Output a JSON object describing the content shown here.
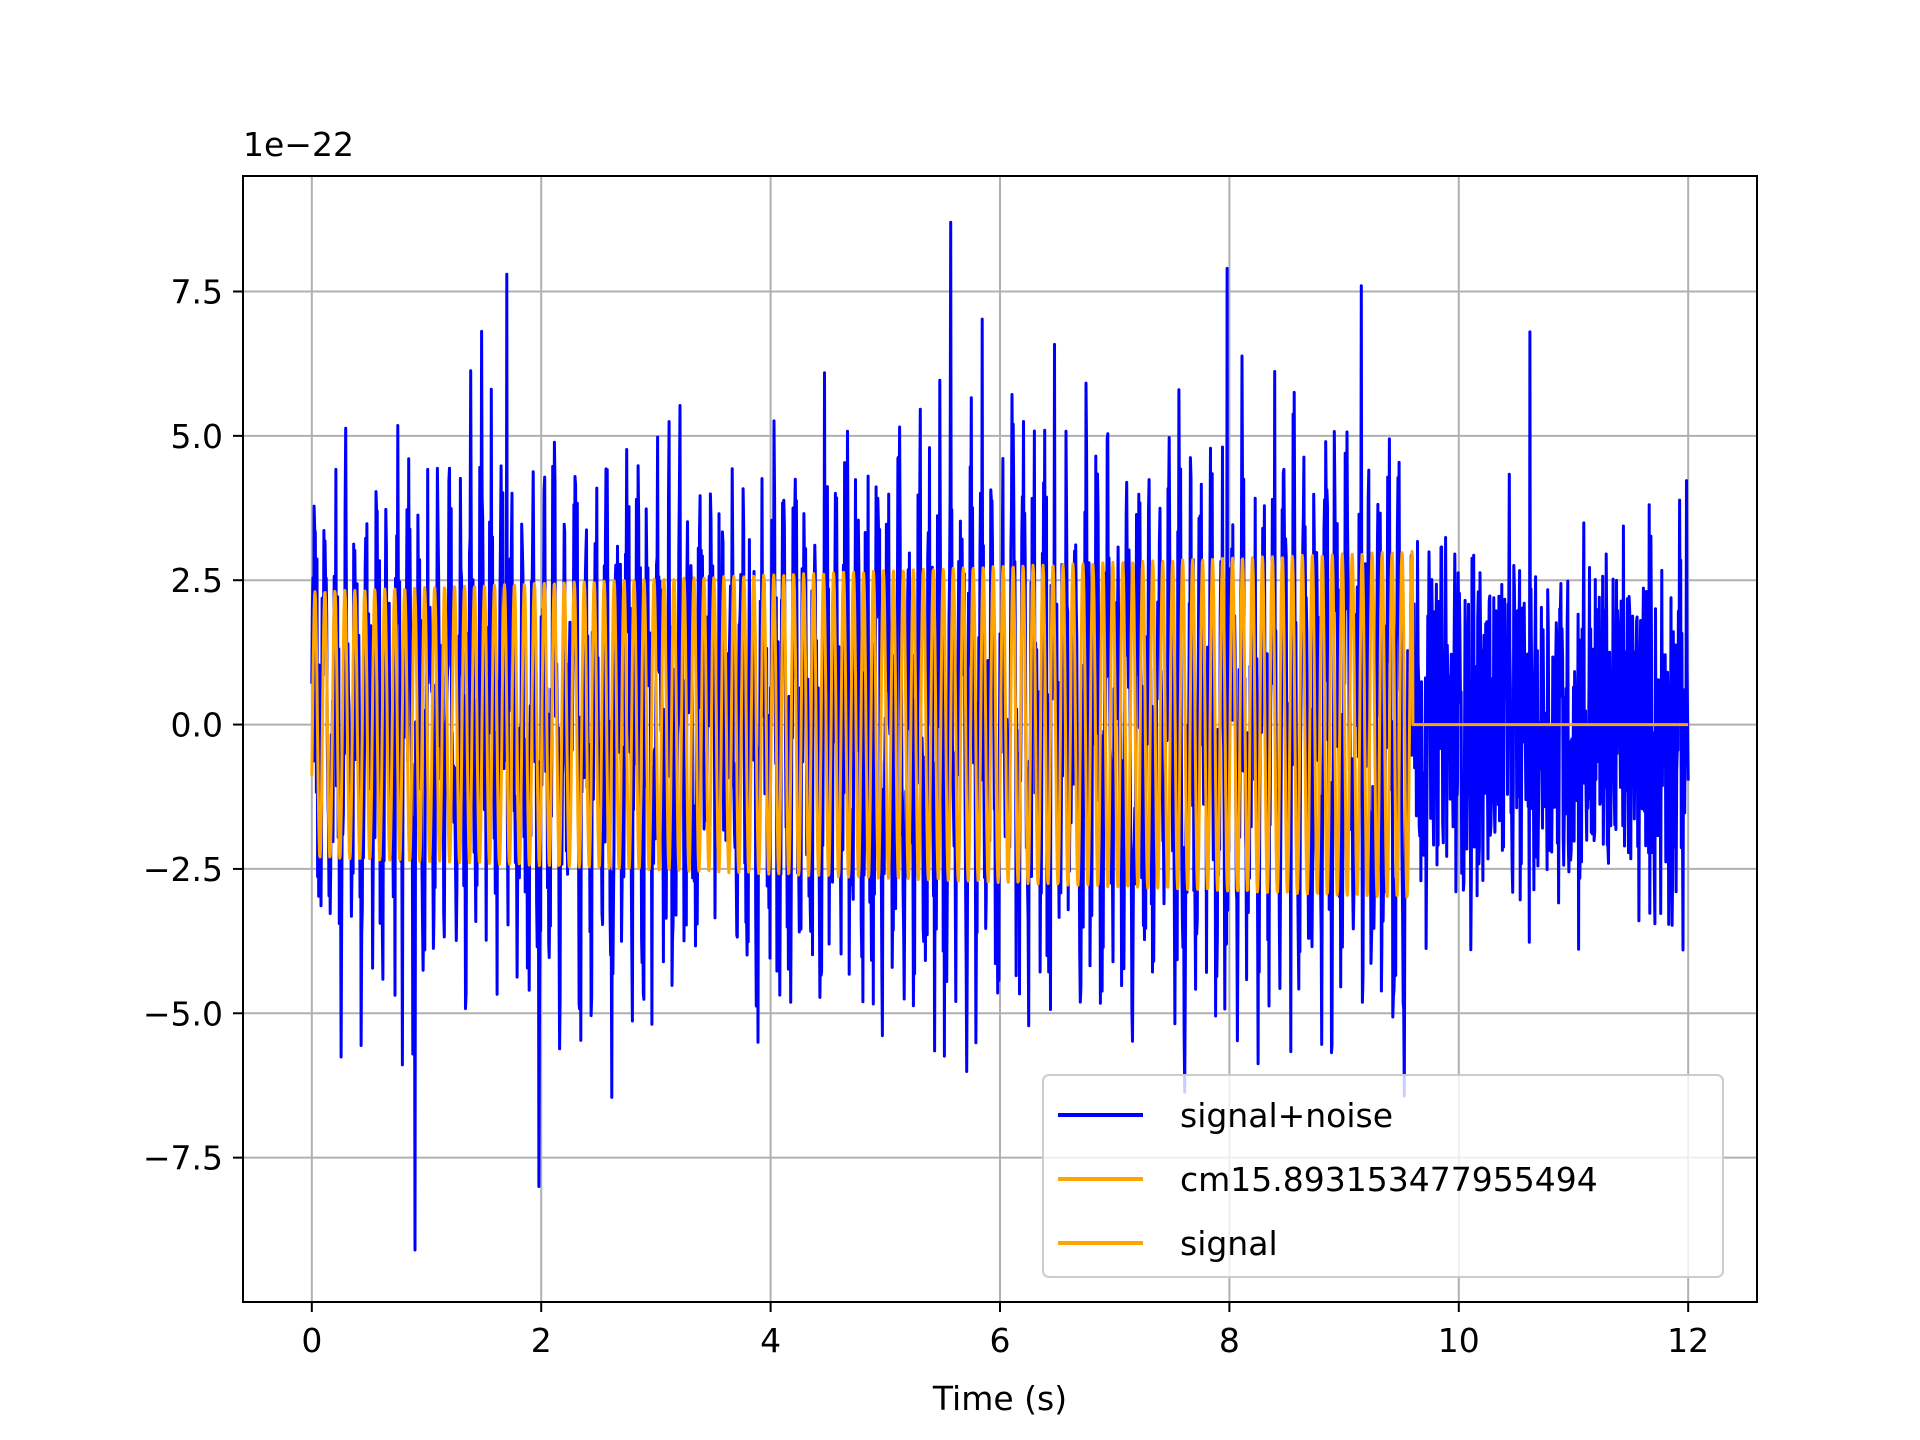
{
  "chart_data": {
    "type": "line",
    "title": "",
    "xlabel": "Time (s)",
    "ylabel": "",
    "offset_text": "1e−22",
    "xlim": [
      -0.6,
      12.6
    ],
    "ylim": [
      -10.0,
      9.5
    ],
    "y_scale_exponent": -22,
    "x_ticks": [
      0,
      2,
      4,
      6,
      8,
      10,
      12
    ],
    "x_tick_labels": [
      "0",
      "2",
      "4",
      "6",
      "8",
      "10",
      "12"
    ],
    "y_ticks": [
      -7.5,
      -5.0,
      -2.5,
      0.0,
      2.5,
      5.0,
      7.5
    ],
    "y_tick_labels": [
      "−7.5",
      "−5.0",
      "−2.5",
      "0.0",
      "2.5",
      "5.0",
      "7.5"
    ],
    "grid": true,
    "legend": "lower-right",
    "series": [
      {
        "name": "signal+noise",
        "color": "#0000ff",
        "x_start": 0,
        "x_end": 12,
        "envelope_max": 8.7,
        "envelope_min": -9.1,
        "notable_peaks": [
          {
            "x": 0.9,
            "y": -9.1
          },
          {
            "x": 1.7,
            "y": 7.8
          },
          {
            "x": 1.98,
            "y": -8.0
          },
          {
            "x": 5.57,
            "y": 8.7
          },
          {
            "x": 7.98,
            "y": 7.9
          },
          {
            "x": 9.15,
            "y": 7.6
          },
          {
            "x": 10.62,
            "y": 6.8
          }
        ]
      },
      {
        "name": "cm15.893153477955494",
        "color": "#ffa500"
      },
      {
        "name": "signal",
        "color": "#ffa500",
        "x_start": 0,
        "x_end": 12,
        "active_until": 9.6,
        "amplitude_start": 2.3,
        "amplitude_end": 3.0,
        "value_after": 0.0
      }
    ]
  }
}
